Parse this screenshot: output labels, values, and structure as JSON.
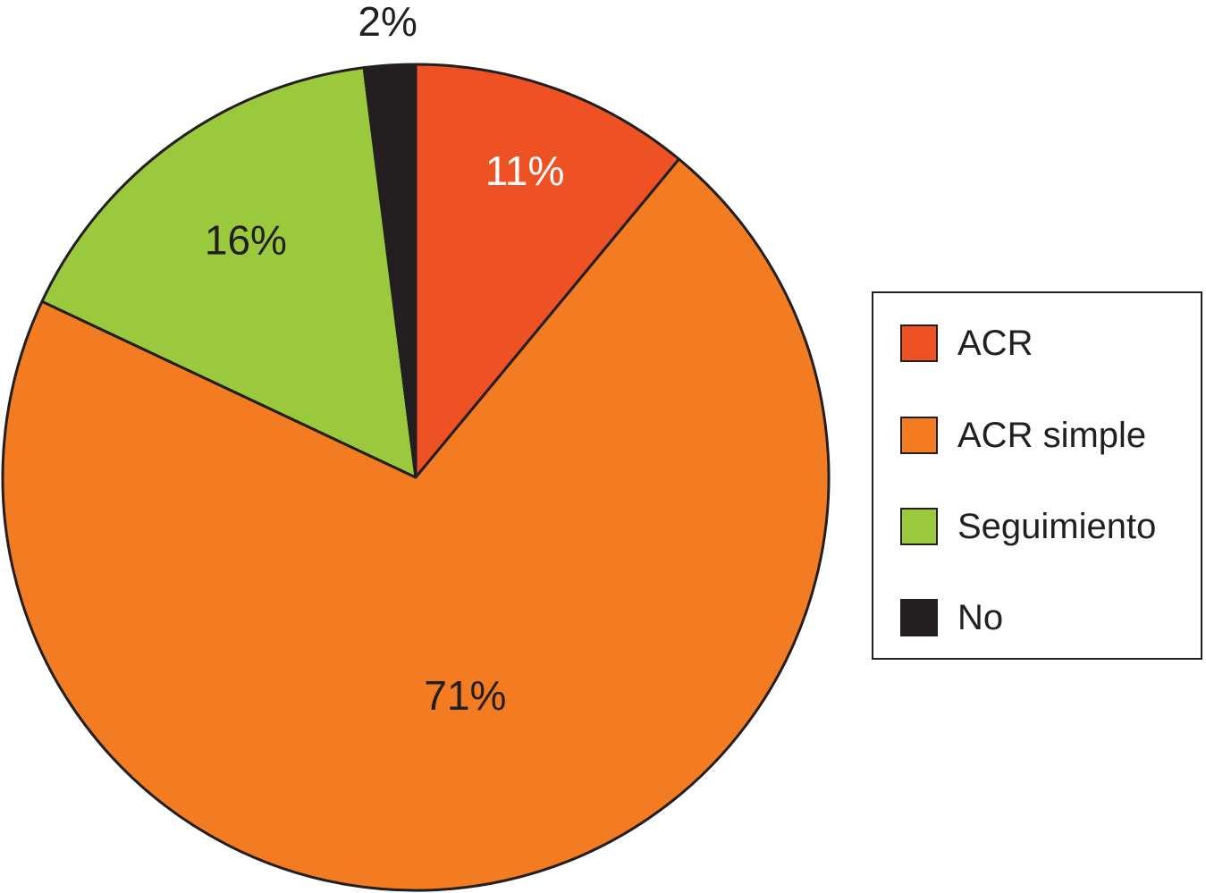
{
  "chart_data": {
    "type": "pie",
    "title": "",
    "start_angle_deg": 0,
    "direction": "clockwise",
    "slices": [
      {
        "name": "ACR",
        "value": 11,
        "label": "11%",
        "color": "#ee5124",
        "label_color": "#ffffff"
      },
      {
        "name": "ACR simple",
        "value": 71,
        "label": "71%",
        "color": "#f37b21",
        "label_color": "#231f20"
      },
      {
        "name": "Seguimiento",
        "value": 16,
        "label": "16%",
        "color": "#9bc93d",
        "label_color": "#231f20"
      },
      {
        "name": "No",
        "value": 2,
        "label": "2%",
        "color": "#231f20",
        "label_color": "#231f20"
      }
    ],
    "legend_position": "right"
  }
}
